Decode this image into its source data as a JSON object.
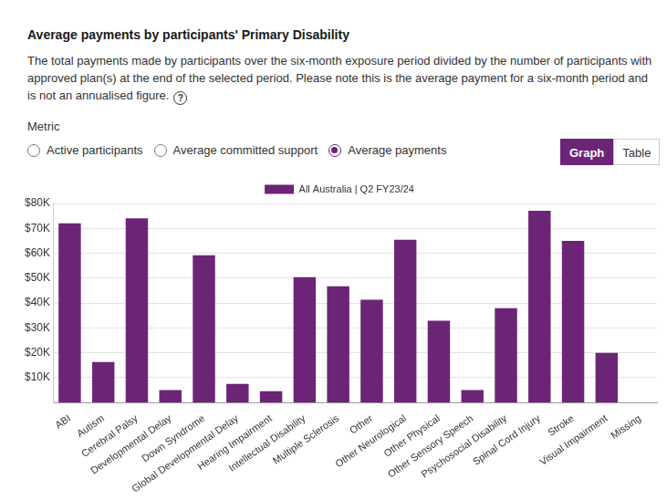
{
  "title": "Average payments by participants' Primary Disability",
  "description": "The total payments made by participants over the six-month exposure period divided by the number of participants with approved plan(s) at the end of the selected period. Please note this is the average payment for a six-month period and is not an annualised figure.",
  "help_icon": "?",
  "metric_label": "Metric",
  "metric_options": [
    "Active participants",
    "Average committed support",
    "Average payments"
  ],
  "selected_metric": "Average payments",
  "view_options": [
    "Graph",
    "Table"
  ],
  "selected_view": "Graph",
  "chart_data": {
    "type": "bar",
    "categories": [
      "ABI",
      "Autism",
      "Cerebral Palsy",
      "Developmental Delay",
      "Down Syndrome",
      "Global Developmental Delay",
      "Hearing Impairment",
      "Intellectual Disability",
      "Multiple Sclerosis",
      "Other",
      "Other Neurological",
      "Other Physical",
      "Other Sensory Speech",
      "Psychosocial Disability",
      "Spinal Cord Injury",
      "Stroke",
      "Visual Impairment",
      "Missing"
    ],
    "series": [
      {
        "name": "All Australia | Q2 FY23/24",
        "color": "#6c2576",
        "values": [
          72000,
          16300,
          74000,
          5000,
          59200,
          7500,
          4600,
          50400,
          46700,
          41300,
          65400,
          32900,
          5000,
          37900,
          77100,
          65000,
          20000,
          null
        ]
      }
    ],
    "ylim": [
      0,
      80000
    ],
    "yticks": [
      {
        "value": 10000,
        "label": "$10K"
      },
      {
        "value": 20000,
        "label": "$20K"
      },
      {
        "value": 30000,
        "label": "$30K"
      },
      {
        "value": 40000,
        "label": "$40K"
      },
      {
        "value": 50000,
        "label": "$50K"
      },
      {
        "value": 60000,
        "label": "$60K"
      },
      {
        "value": 70000,
        "label": "$70K"
      },
      {
        "value": 80000,
        "label": "$80K"
      }
    ],
    "grid": true,
    "legend": "top"
  }
}
